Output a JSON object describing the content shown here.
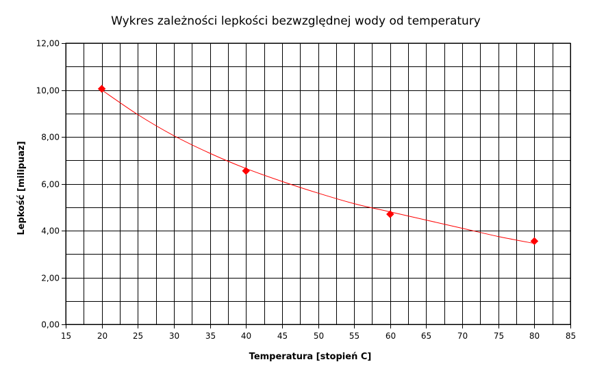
{
  "chart_data": {
    "type": "scatter",
    "title": "Wykres zależności lepkości bezwzględnej wody od temperatury",
    "xlabel": "Temperatura [stopień C]",
    "ylabel": "Lepkość [milipuaz]",
    "xlim": [
      15,
      85
    ],
    "ylim": [
      0,
      12
    ],
    "x_ticks": [
      15,
      20,
      25,
      30,
      35,
      40,
      45,
      50,
      55,
      60,
      65,
      70,
      75,
      80,
      85
    ],
    "y_ticks": [
      0,
      2,
      4,
      6,
      8,
      10,
      12
    ],
    "x_tick_labels": [
      "15",
      "20",
      "25",
      "30",
      "35",
      "40",
      "45",
      "50",
      "55",
      "60",
      "65",
      "70",
      "75",
      "80",
      "85"
    ],
    "y_tick_labels": [
      "0,00",
      "2,00",
      "4,00",
      "6,00",
      "8,00",
      "10,00",
      "12,00"
    ],
    "grid": true,
    "series": [
      {
        "x": [
          20,
          40,
          60,
          80
        ],
        "y": [
          10.05,
          6.55,
          4.7,
          3.55
        ],
        "color": "#ff0000",
        "marker": "diamond"
      }
    ],
    "trendline": {
      "type": "power",
      "color": "#ff0000",
      "x": [
        20,
        25,
        30,
        35,
        40,
        45,
        50,
        55,
        60,
        65,
        70,
        75,
        80
      ],
      "y": [
        10.0,
        8.95,
        8.05,
        7.3,
        6.65,
        6.1,
        5.6,
        5.15,
        4.8,
        4.45,
        4.1,
        3.75,
        3.45
      ]
    },
    "legend": "none"
  }
}
